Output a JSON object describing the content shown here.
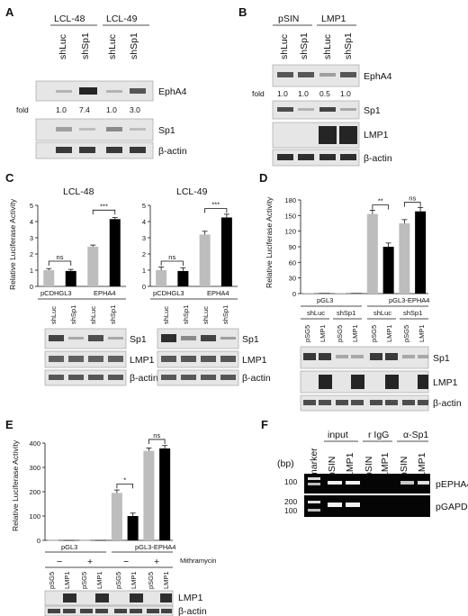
{
  "panels": {
    "A": {
      "letter": "A",
      "groups": [
        "LCL-48",
        "LCL-49"
      ],
      "lanes": [
        "shLuc",
        "shSp1",
        "shLuc",
        "shSp1"
      ],
      "blots": [
        "EphA4",
        "Sp1",
        "β-actin"
      ],
      "fold_label": "fold",
      "fold_values": [
        "1.0",
        "7.4",
        "1.0",
        "3.0"
      ]
    },
    "B": {
      "letter": "B",
      "groups": [
        "pSIN",
        "LMP1"
      ],
      "lanes": [
        "shLuc",
        "shSp1",
        "shLuc",
        "shSp1"
      ],
      "blots": [
        "EphA4",
        "Sp1",
        "LMP1",
        "β-actin"
      ],
      "fold_label": "fold",
      "fold_values": [
        "1.0",
        "1.0",
        "0.5",
        "1.0"
      ]
    },
    "C": {
      "letter": "C",
      "ylabel": "Relative Luciferase Activity",
      "sig": [
        "ns",
        "***"
      ],
      "reporters": [
        "pCDHGL3",
        "EPHA4"
      ],
      "lanes": [
        "shLuc",
        "shSp1",
        "shLuc",
        "shSp1"
      ],
      "blots": [
        "Sp1",
        "LMP1",
        "β-actin"
      ]
    },
    "D": {
      "letter": "D",
      "ylabel": "Relative Luciferase Activity",
      "sig": [
        "**",
        "ns"
      ],
      "reporters": [
        "pGL3",
        "pGL3-EPHA4"
      ],
      "sh_groups": [
        "shLuc",
        "shSp1",
        "shLuc",
        "shSp1"
      ],
      "lanes": [
        "pSG5",
        "LMP1",
        "pSG5",
        "LMP1",
        "pSG5",
        "LMP1",
        "pSG5",
        "LMP1"
      ],
      "blots": [
        "Sp1",
        "LMP1",
        "β-actin"
      ]
    },
    "E": {
      "letter": "E",
      "ylabel": "Relative Luciferase Activity",
      "sig": [
        "*",
        "ns"
      ],
      "reporters": [
        "pGL3",
        "pGL3-EPHA4"
      ],
      "treatment_label": "Mithramycin",
      "treatment": [
        "−",
        "+",
        "−",
        "+"
      ],
      "lanes": [
        "pSG5",
        "LMP1",
        "pSG5",
        "LMP1",
        "pSG5",
        "LMP1",
        "pSG5",
        "LMP1"
      ],
      "blots": [
        "LMP1",
        "β-actin"
      ]
    },
    "F": {
      "letter": "F",
      "groups": [
        "input",
        "r IgG",
        "α-Sp1"
      ],
      "marker": "marker",
      "lanes": [
        "pSIN",
        "LMP1",
        "pSIN",
        "LMP1",
        "pSIN",
        "LMP1"
      ],
      "bp_label": "(bp)",
      "bp_ticks": [
        "100",
        "200",
        "100"
      ],
      "bands": [
        "pEPHA4",
        "pGAPDH"
      ]
    }
  },
  "chart_data": [
    {
      "type": "bar",
      "title": "LCL-48",
      "ylabel": "Relative Luciferase Activity",
      "categories": [
        "pCDHGL3 shLuc",
        "pCDHGL3 shSp1",
        "EPHA4 shLuc",
        "EPHA4 shSp1"
      ],
      "values": [
        1.0,
        0.95,
        2.45,
        4.15
      ],
      "colors": [
        "#bdbdbd",
        "#000000",
        "#bdbdbd",
        "#000000"
      ],
      "ylim": [
        0,
        5
      ],
      "yticks": [
        "0",
        "1",
        "2",
        "3",
        "4",
        "5"
      ]
    },
    {
      "type": "bar",
      "title": "LCL-49",
      "ylabel": "Relative Luciferase Activity",
      "categories": [
        "pCDHGL3 shLuc",
        "pCDHGL3 shSp1",
        "EPHA4 shLuc",
        "EPHA4 shSp1"
      ],
      "values": [
        1.0,
        0.95,
        3.2,
        4.25
      ],
      "colors": [
        "#bdbdbd",
        "#000000",
        "#bdbdbd",
        "#000000"
      ],
      "ylim": [
        0,
        5
      ],
      "yticks": [
        "0",
        "1",
        "2",
        "3",
        "4",
        "5"
      ]
    },
    {
      "type": "bar",
      "ylabel": "Relative Luciferase Activity",
      "categories": [
        "pGL3 shLuc pSG5",
        "pGL3 shLuc LMP1",
        "pGL3 shSp1 pSG5",
        "pGL3 shSp1 LMP1",
        "pGL3-EPHA4 shLuc pSG5",
        "pGL3-EPHA4 shLuc LMP1",
        "pGL3-EPHA4 shSp1 pSG5",
        "pGL3-EPHA4 shSp1 LMP1"
      ],
      "values": [
        1,
        1,
        1,
        1,
        153,
        90,
        135,
        158
      ],
      "colors": [
        "#bdbdbd",
        "#000000",
        "#bdbdbd",
        "#000000",
        "#bdbdbd",
        "#000000",
        "#bdbdbd",
        "#000000"
      ],
      "ylim": [
        0,
        180
      ],
      "yticks": [
        "0",
        "30",
        "60",
        "90",
        "120",
        "150",
        "180"
      ]
    },
    {
      "type": "bar",
      "ylabel": "Relative Luciferase Activity",
      "categories": [
        "pGL3 − pSG5",
        "pGL3 − LMP1",
        "pGL3 + pSG5",
        "pGL3 + LMP1",
        "pGL3-EPHA4 − pSG5",
        "pGL3-EPHA4 − LMP1",
        "pGL3-EPHA4 + pSG5",
        "pGL3-EPHA4 + LMP1"
      ],
      "values": [
        1,
        1,
        1,
        1,
        195,
        100,
        368,
        378
      ],
      "colors": [
        "#bdbdbd",
        "#000000",
        "#bdbdbd",
        "#000000",
        "#bdbdbd",
        "#000000",
        "#bdbdbd",
        "#000000"
      ],
      "ylim": [
        0,
        400
      ],
      "yticks": [
        "0",
        "100",
        "200",
        "300",
        "400"
      ]
    }
  ]
}
